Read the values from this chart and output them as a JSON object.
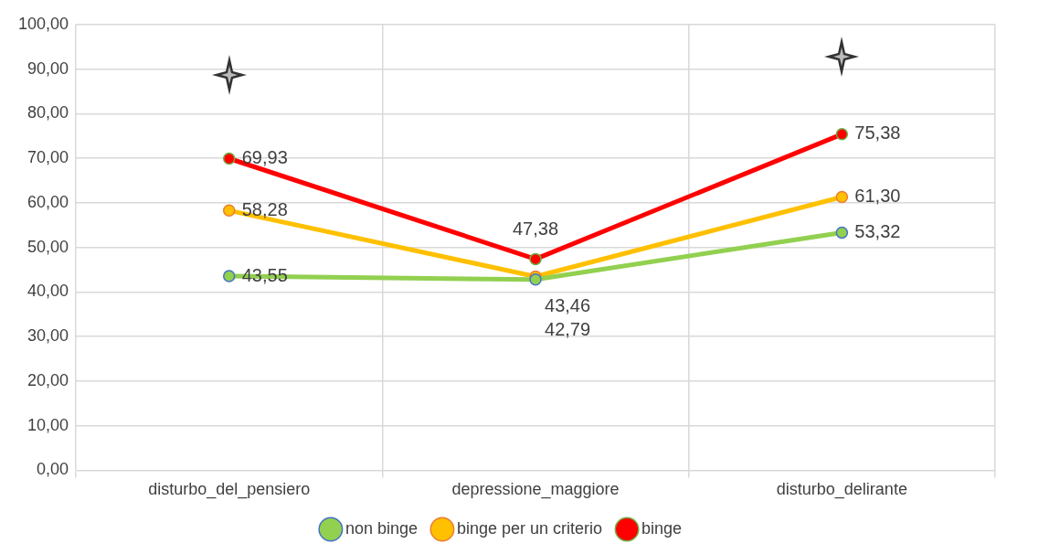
{
  "chart_data": {
    "type": "line",
    "categories": [
      "disturbo_del_pensiero",
      "depressione_maggiore",
      "disturbo_delirante"
    ],
    "series": [
      {
        "name": "non binge",
        "color": "#92d050",
        "values": [
          43.55,
          42.79,
          53.32
        ],
        "value_labels": [
          "43,55",
          "42,79",
          "53,32"
        ]
      },
      {
        "name": "binge per un criterio",
        "color": "#ffc000",
        "values": [
          58.28,
          43.46,
          61.3
        ],
        "value_labels": [
          "58,28",
          "43,46",
          "61,30"
        ]
      },
      {
        "name": "binge",
        "color": "#ff0000",
        "values": [
          69.93,
          47.38,
          75.38
        ],
        "value_labels": [
          "69,93",
          "47,38",
          "75,38"
        ]
      }
    ],
    "ylim": [
      0,
      100
    ],
    "yticks": [
      {
        "value": 0,
        "label": "0,00"
      },
      {
        "value": 10,
        "label": "10,00"
      },
      {
        "value": 20,
        "label": "20,00"
      },
      {
        "value": 30,
        "label": "30,00"
      },
      {
        "value": 40,
        "label": "40,00"
      },
      {
        "value": 50,
        "label": "50,00"
      },
      {
        "value": 60,
        "label": "60,00"
      },
      {
        "value": 70,
        "label": "70,00"
      },
      {
        "value": 80,
        "label": "80,00"
      },
      {
        "value": 90,
        "label": "90,00"
      },
      {
        "value": 100,
        "label": "100,00"
      }
    ],
    "grid": true,
    "legend": "bottom",
    "marker": "circle",
    "line_style": "solid"
  }
}
